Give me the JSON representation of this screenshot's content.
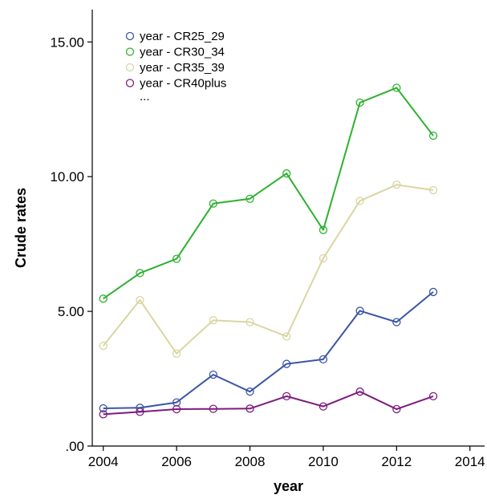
{
  "chart_data": {
    "type": "line",
    "title": "",
    "xlabel": "year",
    "ylabel": "Crude rates",
    "xlim": [
      2003.7,
      2014.4
    ],
    "ylim": [
      0,
      16.2
    ],
    "x_ticks": [
      2004,
      2006,
      2008,
      2010,
      2012,
      2014
    ],
    "x_tick_labels": [
      "2004",
      "2006",
      "2008",
      "2010",
      "2012",
      "2014"
    ],
    "y_ticks": [
      0,
      5,
      10,
      15
    ],
    "y_tick_labels": [
      ".00",
      "5.00",
      "10.00",
      "15.00"
    ],
    "grid": false,
    "legend_position": "top-left",
    "legend_more": "...",
    "x": [
      2004,
      2005,
      2006,
      2007,
      2008,
      2009,
      2010,
      2011,
      2012,
      2013
    ],
    "series": [
      {
        "name": "year - CR25_29",
        "color": "#3b56a6",
        "values": [
          1.4,
          1.42,
          1.62,
          2.65,
          2.02,
          3.05,
          3.22,
          5.02,
          4.6,
          5.72
        ]
      },
      {
        "name": "year - CR30_34",
        "color": "#2db12f",
        "values": [
          5.47,
          6.42,
          6.95,
          9.0,
          9.18,
          10.12,
          8.02,
          12.75,
          13.3,
          11.52
        ]
      },
      {
        "name": "year - CR35_39",
        "color": "#d9d6a3",
        "values": [
          3.72,
          5.42,
          3.43,
          4.67,
          4.6,
          4.07,
          6.97,
          9.1,
          9.7,
          9.5
        ]
      },
      {
        "name": "year - CR40plus",
        "color": "#7e1b7e",
        "values": [
          1.18,
          1.27,
          1.37,
          1.38,
          1.39,
          1.85,
          1.47,
          2.02,
          1.37,
          1.85
        ]
      }
    ]
  }
}
